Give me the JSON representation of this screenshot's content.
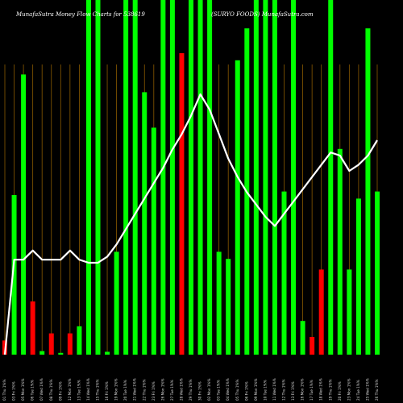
{
  "header": {
    "left_title": "MunafaSutra  Money Flow  Charts for 538619",
    "right_title": "(SURYO FOODS)  MunafaSutra.com"
  },
  "colors": {
    "background": "#000000",
    "up_bar": "#00ff00",
    "down_bar": "#ff0000",
    "line": "#ffffff",
    "grid": "#8a5a00"
  },
  "chart_data": {
    "type": "bar",
    "title": "MunafaSutra  Money Flow  Charts for 538619",
    "subtitle": "(SURYO FOODS)  MunafaSutra.com",
    "categories": [
      "01 Thu 1%%",
      "03 Fri 1%%",
      "05 Mon 1%%",
      "06 Tue 1%%",
      "07 Wed 1%%",
      "08 Thu 1%%",
      "09 Fri 1%%",
      "12 Mon 1%%",
      "13 Tue 1%%",
      "14 Wed 1%%",
      "15 Thu 1%%",
      "16 Fri 1%%",
      "19 Mon 1%%",
      "20 Tue 1%%",
      "21 Wed 1%%",
      "22 Thu 1%%",
      "23 Fri 1%%",
      "26 Mon 1%%",
      "27 Tue 1%%",
      "28 Wed 1%%",
      "29 Thu 1%%",
      "30 Fri 1%%",
      "02 Mon 1%%",
      "03 Tue 1%%",
      "04 Wed 1%%",
      "05 Thu 1%%",
      "06 Fri 1%%",
      "09 Mon 1%%",
      "10 Tue 1%%",
      "11 Wed 1%%",
      "12 Thu 1%%",
      "13 Fri 1%%",
      "16 Mon 1%%",
      "17 Tue 1%%",
      "18 Wed 1%%",
      "19 Thu 1%%",
      "20 Fri 1%%",
      "23 Mon 1%%",
      "24 Tue 1%%",
      "25 Wed 1%%",
      "26 Thu 1%%"
    ],
    "series": [
      {
        "values": [
          4,
          45,
          79,
          15,
          1,
          6,
          0.5,
          6,
          8,
          100,
          100,
          0.8,
          29,
          100,
          100,
          74,
          64,
          100,
          100,
          85,
          100,
          100,
          100,
          29,
          27,
          83,
          92,
          100,
          100,
          100,
          46,
          100,
          9.5,
          5,
          24,
          100,
          58,
          24,
          44,
          92,
          46
        ],
        "colors": [
          "red",
          "green",
          "green",
          "red",
          "green",
          "red",
          "green",
          "red",
          "green",
          "green",
          "green",
          "green",
          "green",
          "green",
          "green",
          "green",
          "green",
          "green",
          "green",
          "red",
          "green",
          "green",
          "green",
          "green",
          "green",
          "green",
          "green",
          "green",
          "green",
          "green",
          "green",
          "green",
          "green",
          "red",
          "red",
          "green",
          "green",
          "green",
          "green",
          "green",
          "green"
        ]
      },
      {
        "type": "line",
        "values": [
          0,
          31,
          31,
          34,
          31,
          31,
          31,
          34,
          31,
          30,
          30,
          32,
          36,
          41,
          46,
          51,
          56,
          61,
          67,
          72,
          78,
          85,
          80,
          72,
          64,
          58,
          53,
          49,
          45,
          42,
          46,
          50,
          54,
          58,
          62,
          66,
          65,
          60,
          62,
          65,
          70
        ]
      }
    ],
    "ylim": [
      0,
      100
    ],
    "grid": true
  }
}
